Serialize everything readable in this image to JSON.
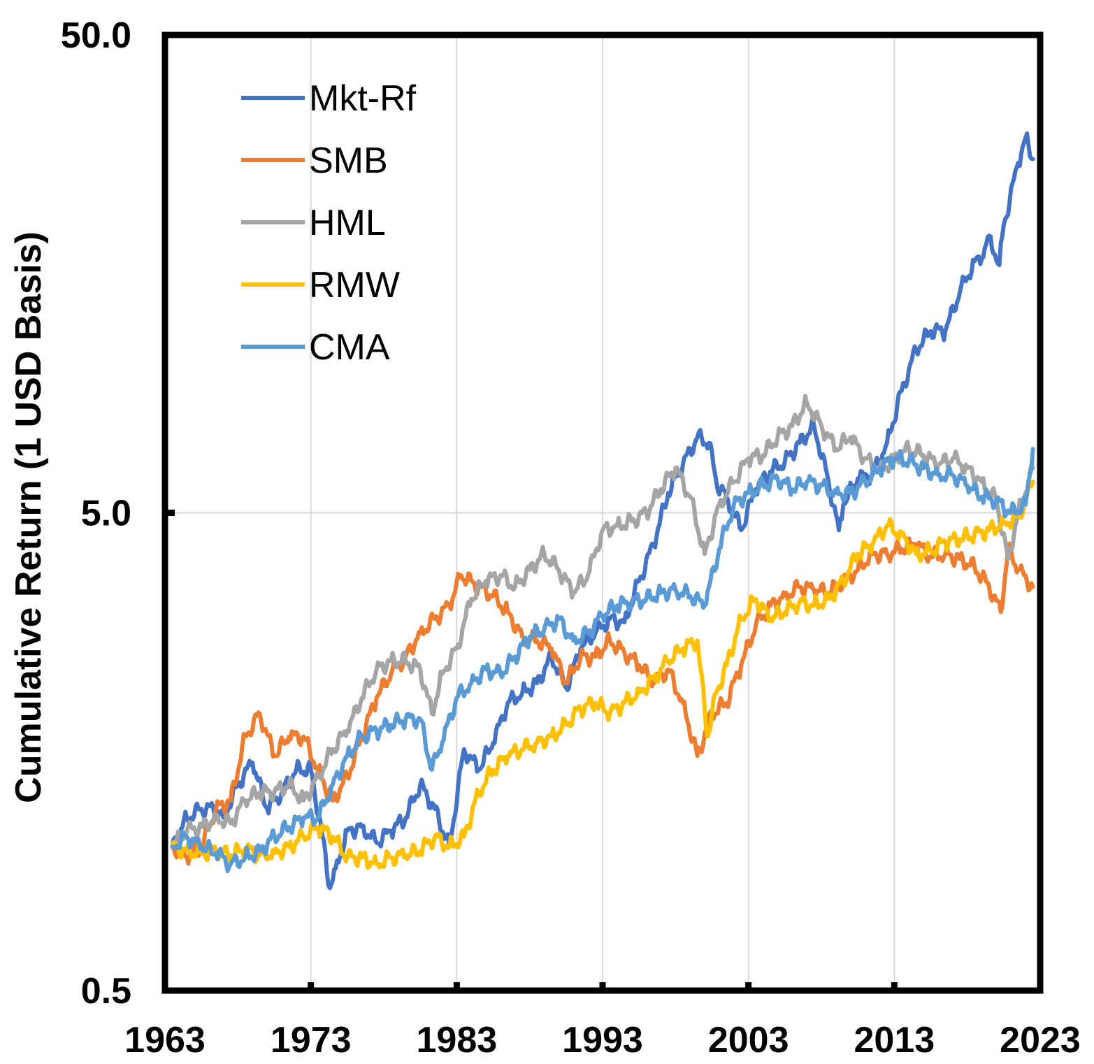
{
  "chart_data": {
    "type": "line",
    "title": "",
    "xlabel": "",
    "ylabel": "Cumulative Return (1 USD Basis)",
    "xlim": [
      1963,
      2023
    ],
    "ylim": [
      0.5,
      50.0
    ],
    "yscale": "log",
    "x_ticks": [
      "1963",
      "1973",
      "1983",
      "1993",
      "2003",
      "2013",
      "2023"
    ],
    "y_ticks": [
      "0.5",
      "5.0",
      "50.0"
    ],
    "grid": "vertical gridlines on",
    "legend": "top-left",
    "series": [
      {
        "name": "Mkt-Rf",
        "color": "#4472C4",
        "points": [
          [
            1963.5,
            1.0
          ],
          [
            1964.5,
            1.15
          ],
          [
            1965.5,
            1.2
          ],
          [
            1966.5,
            1.2
          ],
          [
            1967,
            1.15
          ],
          [
            1968,
            1.35
          ],
          [
            1969,
            1.5
          ],
          [
            1970,
            1.2
          ],
          [
            1971,
            1.3
          ],
          [
            1972,
            1.45
          ],
          [
            1973,
            1.45
          ],
          [
            1973.8,
            1.05
          ],
          [
            1974.3,
            0.82
          ],
          [
            1974.7,
            0.9
          ],
          [
            1975.5,
            1.08
          ],
          [
            1976.5,
            1.1
          ],
          [
            1977.5,
            1.02
          ],
          [
            1978.5,
            1.08
          ],
          [
            1979.5,
            1.15
          ],
          [
            1980.5,
            1.35
          ],
          [
            1981.5,
            1.2
          ],
          [
            1982.5,
            1.0
          ],
          [
            1983.5,
            1.6
          ],
          [
            1984.5,
            1.45
          ],
          [
            1985.5,
            1.65
          ],
          [
            1986.5,
            2.0
          ],
          [
            1987.5,
            2.1
          ],
          [
            1988.5,
            2.2
          ],
          [
            1989.5,
            2.5
          ],
          [
            1990.5,
            2.15
          ],
          [
            1991.5,
            2.6
          ],
          [
            1992.5,
            2.8
          ],
          [
            1993.5,
            3.0
          ],
          [
            1994.5,
            2.95
          ],
          [
            1995.5,
            3.6
          ],
          [
            1996.5,
            4.3
          ],
          [
            1997.5,
            5.5
          ],
          [
            1998.5,
            6.3
          ],
          [
            1999.5,
            7.2
          ],
          [
            2000.3,
            7.0
          ],
          [
            2000.8,
            5.8
          ],
          [
            2001.5,
            5.4
          ],
          [
            2002.5,
            4.6
          ],
          [
            2003.5,
            5.6
          ],
          [
            2004.5,
            6.1
          ],
          [
            2005.5,
            6.4
          ],
          [
            2006.5,
            7.0
          ],
          [
            2007.5,
            7.6
          ],
          [
            2008.5,
            5.8
          ],
          [
            2009.2,
            4.6
          ],
          [
            2009.5,
            5.2
          ],
          [
            2010.5,
            5.9
          ],
          [
            2011.5,
            6.0
          ],
          [
            2012.5,
            7.0
          ],
          [
            2013.5,
            9.0
          ],
          [
            2014.5,
            11.0
          ],
          [
            2015.5,
            12.0
          ],
          [
            2016.5,
            12.0
          ],
          [
            2017.5,
            14.5
          ],
          [
            2018.5,
            16.8
          ],
          [
            2019,
            17.0
          ],
          [
            2019.5,
            19.0
          ],
          [
            2020.2,
            16.5
          ],
          [
            2020.5,
            20.0
          ],
          [
            2021.5,
            27.0
          ],
          [
            2022,
            30.5
          ],
          [
            2022.5,
            27.5
          ]
        ]
      },
      {
        "name": "SMB",
        "color": "#ED7D31",
        "points": [
          [
            1963.5,
            1.0
          ],
          [
            1964.5,
            0.95
          ],
          [
            1965.5,
            1.0
          ],
          [
            1966.5,
            1.2
          ],
          [
            1967.5,
            1.25
          ],
          [
            1968.5,
            1.7
          ],
          [
            1969.5,
            1.9
          ],
          [
            1970.5,
            1.55
          ],
          [
            1971.5,
            1.7
          ],
          [
            1972.5,
            1.7
          ],
          [
            1973.5,
            1.45
          ],
          [
            1974.5,
            1.25
          ],
          [
            1975.5,
            1.4
          ],
          [
            1976.5,
            1.7
          ],
          [
            1977.5,
            2.05
          ],
          [
            1978.5,
            2.3
          ],
          [
            1979.5,
            2.5
          ],
          [
            1980.5,
            2.8
          ],
          [
            1981.5,
            3.0
          ],
          [
            1982.5,
            3.2
          ],
          [
            1983.3,
            3.7
          ],
          [
            1984.5,
            3.5
          ],
          [
            1985.5,
            3.35
          ],
          [
            1986.5,
            3.1
          ],
          [
            1987.5,
            2.75
          ],
          [
            1988.5,
            2.7
          ],
          [
            1989.5,
            2.6
          ],
          [
            1990.5,
            2.2
          ],
          [
            1991.5,
            2.5
          ],
          [
            1992.5,
            2.5
          ],
          [
            1993.5,
            2.7
          ],
          [
            1994.5,
            2.55
          ],
          [
            1995.5,
            2.4
          ],
          [
            1996.5,
            2.2
          ],
          [
            1997.5,
            2.35
          ],
          [
            1998.5,
            2.0
          ],
          [
            1999.5,
            1.55
          ],
          [
            2000.5,
            1.9
          ],
          [
            2001.5,
            2.0
          ],
          [
            2002.5,
            2.4
          ],
          [
            2003.5,
            2.9
          ],
          [
            2004.5,
            3.2
          ],
          [
            2005.5,
            3.35
          ],
          [
            2006.5,
            3.5
          ],
          [
            2007.5,
            3.45
          ],
          [
            2008.5,
            3.4
          ],
          [
            2009.5,
            3.6
          ],
          [
            2010.5,
            3.8
          ],
          [
            2011.5,
            4.1
          ],
          [
            2012.5,
            4.1
          ],
          [
            2013.5,
            4.2
          ],
          [
            2014.5,
            4.3
          ],
          [
            2015.5,
            4.05
          ],
          [
            2016.5,
            4.1
          ],
          [
            2017.5,
            4.0
          ],
          [
            2018.5,
            3.85
          ],
          [
            2019.5,
            3.5
          ],
          [
            2020.3,
            3.1
          ],
          [
            2020.8,
            4.2
          ],
          [
            2021.5,
            3.8
          ],
          [
            2022.5,
            3.5
          ]
        ]
      },
      {
        "name": "HML",
        "color": "#A5A5A5",
        "points": [
          [
            1963.5,
            1.0
          ],
          [
            1964.5,
            1.08
          ],
          [
            1965.5,
            1.1
          ],
          [
            1966.5,
            1.15
          ],
          [
            1967.5,
            1.12
          ],
          [
            1968.5,
            1.25
          ],
          [
            1969.5,
            1.3
          ],
          [
            1970.5,
            1.3
          ],
          [
            1971.5,
            1.35
          ],
          [
            1972.5,
            1.25
          ],
          [
            1973.5,
            1.4
          ],
          [
            1974.5,
            1.6
          ],
          [
            1975.5,
            1.75
          ],
          [
            1976.5,
            2.05
          ],
          [
            1977.5,
            2.35
          ],
          [
            1978.5,
            2.45
          ],
          [
            1979.5,
            2.45
          ],
          [
            1980.5,
            2.35
          ],
          [
            1981.3,
            1.9
          ],
          [
            1982,
            2.3
          ],
          [
            1983,
            2.6
          ],
          [
            1984,
            3.3
          ],
          [
            1985,
            3.6
          ],
          [
            1986,
            3.7
          ],
          [
            1987,
            3.5
          ],
          [
            1988,
            3.8
          ],
          [
            1989,
            4.1
          ],
          [
            1990,
            3.8
          ],
          [
            1991,
            3.4
          ],
          [
            1992,
            3.7
          ],
          [
            1993,
            4.6
          ],
          [
            1994,
            4.7
          ],
          [
            1995,
            4.8
          ],
          [
            1996,
            5.0
          ],
          [
            1997,
            5.6
          ],
          [
            1998,
            6.2
          ],
          [
            1999,
            5.4
          ],
          [
            2000,
            4.1
          ],
          [
            2001,
            5.2
          ],
          [
            2002,
            5.8
          ],
          [
            2003,
            6.5
          ],
          [
            2004,
            6.6
          ],
          [
            2005,
            7.2
          ],
          [
            2006,
            7.6
          ],
          [
            2007,
            8.5
          ],
          [
            2008,
            7.6
          ],
          [
            2009,
            6.8
          ],
          [
            2010,
            7.2
          ],
          [
            2011,
            6.5
          ],
          [
            2012,
            6.1
          ],
          [
            2013,
            6.5
          ],
          [
            2014,
            6.8
          ],
          [
            2015,
            6.6
          ],
          [
            2016,
            6.3
          ],
          [
            2017,
            6.5
          ],
          [
            2018,
            6.2
          ],
          [
            2019,
            5.8
          ],
          [
            2020,
            5.3
          ],
          [
            2020.8,
            4.0
          ],
          [
            2021.5,
            5.0
          ],
          [
            2022.5,
            6.2
          ]
        ]
      },
      {
        "name": "RMW",
        "color": "#FFC000",
        "points": [
          [
            1963.5,
            1.0
          ],
          [
            1964.5,
            0.98
          ],
          [
            1965.5,
            0.97
          ],
          [
            1966.5,
            0.98
          ],
          [
            1967.5,
            0.96
          ],
          [
            1968.5,
            0.99
          ],
          [
            1969.5,
            0.96
          ],
          [
            1970.5,
            0.97
          ],
          [
            1971.5,
            1.0
          ],
          [
            1972.5,
            1.05
          ],
          [
            1973.5,
            1.1
          ],
          [
            1974.5,
            1.05
          ],
          [
            1975.5,
            0.95
          ],
          [
            1976.5,
            0.95
          ],
          [
            1977.5,
            0.92
          ],
          [
            1978.5,
            0.95
          ],
          [
            1979.5,
            0.96
          ],
          [
            1980.5,
            0.98
          ],
          [
            1981.5,
            1.05
          ],
          [
            1982.5,
            1.0
          ],
          [
            1983.5,
            1.05
          ],
          [
            1984.5,
            1.3
          ],
          [
            1985.5,
            1.45
          ],
          [
            1986.5,
            1.55
          ],
          [
            1987.5,
            1.6
          ],
          [
            1988.5,
            1.65
          ],
          [
            1989.5,
            1.7
          ],
          [
            1990.5,
            1.8
          ],
          [
            1991.5,
            1.95
          ],
          [
            1992.5,
            2.0
          ],
          [
            1993.5,
            1.9
          ],
          [
            1994.5,
            2.0
          ],
          [
            1995.5,
            2.1
          ],
          [
            1996.5,
            2.25
          ],
          [
            1997.5,
            2.45
          ],
          [
            1998.5,
            2.6
          ],
          [
            1999.5,
            2.7
          ],
          [
            2000.2,
            1.7
          ],
          [
            2000.8,
            2.1
          ],
          [
            2001.5,
            2.4
          ],
          [
            2002.5,
            3.0
          ],
          [
            2003.5,
            3.3
          ],
          [
            2004.5,
            3.0
          ],
          [
            2005.5,
            3.1
          ],
          [
            2006.5,
            3.25
          ],
          [
            2007.5,
            3.2
          ],
          [
            2008.5,
            3.3
          ],
          [
            2009.5,
            3.6
          ],
          [
            2010.5,
            4.1
          ],
          [
            2011.5,
            4.3
          ],
          [
            2012.5,
            4.7
          ],
          [
            2013.5,
            4.5
          ],
          [
            2014.5,
            4.1
          ],
          [
            2015.5,
            4.15
          ],
          [
            2016.5,
            4.35
          ],
          [
            2017.5,
            4.4
          ],
          [
            2018.5,
            4.5
          ],
          [
            2019.5,
            4.6
          ],
          [
            2020.5,
            4.75
          ],
          [
            2021.5,
            4.9
          ],
          [
            2022.5,
            5.8
          ]
        ]
      },
      {
        "name": "CMA",
        "color": "#5B9BD5",
        "points": [
          [
            1963.5,
            1.0
          ],
          [
            1964.5,
            1.05
          ],
          [
            1965.5,
            1.0
          ],
          [
            1966.5,
            0.97
          ],
          [
            1967.5,
            0.92
          ],
          [
            1968.5,
            0.95
          ],
          [
            1969.5,
            0.98
          ],
          [
            1970.5,
            1.05
          ],
          [
            1971.5,
            1.1
          ],
          [
            1972.5,
            1.15
          ],
          [
            1973.5,
            1.15
          ],
          [
            1974.5,
            1.35
          ],
          [
            1975.5,
            1.55
          ],
          [
            1976.5,
            1.7
          ],
          [
            1977.5,
            1.75
          ],
          [
            1978.5,
            1.8
          ],
          [
            1979.5,
            1.85
          ],
          [
            1980.5,
            1.85
          ],
          [
            1981.3,
            1.45
          ],
          [
            1982,
            1.65
          ],
          [
            1983,
            2.05
          ],
          [
            1984,
            2.2
          ],
          [
            1985,
            2.35
          ],
          [
            1986,
            2.3
          ],
          [
            1987,
            2.5
          ],
          [
            1988,
            2.75
          ],
          [
            1989,
            2.85
          ],
          [
            1990,
            3.0
          ],
          [
            1991,
            2.7
          ],
          [
            1992,
            2.8
          ],
          [
            1993,
            3.05
          ],
          [
            1994,
            3.2
          ],
          [
            1995,
            3.25
          ],
          [
            1996,
            3.3
          ],
          [
            1997,
            3.4
          ],
          [
            1998,
            3.45
          ],
          [
            1999,
            3.35
          ],
          [
            2000,
            3.2
          ],
          [
            2001,
            4.2
          ],
          [
            2002,
            5.2
          ],
          [
            2003,
            5.5
          ],
          [
            2004,
            5.7
          ],
          [
            2005,
            5.9
          ],
          [
            2006,
            5.6
          ],
          [
            2007,
            5.8
          ],
          [
            2008,
            5.7
          ],
          [
            2009,
            5.5
          ],
          [
            2010,
            5.5
          ],
          [
            2011,
            5.8
          ],
          [
            2012,
            6.2
          ],
          [
            2013,
            6.5
          ],
          [
            2014,
            6.4
          ],
          [
            2015,
            6.2
          ],
          [
            2016,
            6.0
          ],
          [
            2017,
            6.0
          ],
          [
            2018,
            5.7
          ],
          [
            2019,
            5.4
          ],
          [
            2020,
            5.3
          ],
          [
            2021,
            5.0
          ],
          [
            2022,
            5.2
          ],
          [
            2022.5,
            6.8
          ]
        ]
      }
    ]
  }
}
